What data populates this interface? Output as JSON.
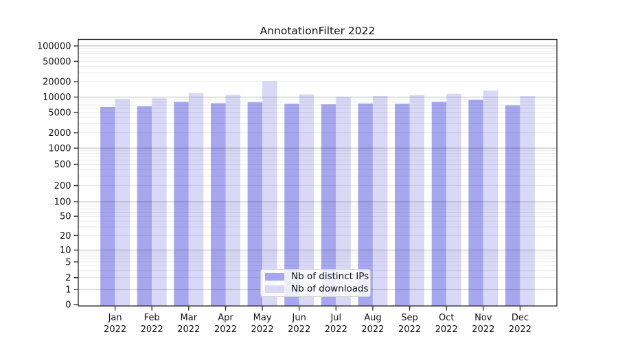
{
  "title": "AnnotationFilter 2022",
  "chart_data": {
    "type": "bar",
    "title": "AnnotationFilter 2022",
    "xlabel": "",
    "ylabel": "",
    "yscale": "symlog",
    "ylim": [
      0,
      130000
    ],
    "grid": "horizontal major (powers of 10) + log minor, drawn over bars",
    "legend_position": "inside lower-center",
    "categories": [
      "Jan",
      "Feb",
      "Mar",
      "Apr",
      "May",
      "Jun",
      "Jul",
      "Aug",
      "Sep",
      "Oct",
      "Nov",
      "Dec"
    ],
    "category_year": "2022",
    "y_ticks": [
      100000,
      50000,
      20000,
      10000,
      5000,
      2000,
      1000,
      500,
      200,
      100,
      50,
      20,
      10,
      5,
      2,
      1,
      0
    ],
    "series": [
      {
        "name": "Nb of distinct IPs",
        "color": "#a7a7ef",
        "values": [
          6400,
          6600,
          8000,
          7600,
          7900,
          7400,
          7200,
          7500,
          7400,
          8000,
          8800,
          6900
        ]
      },
      {
        "name": "Nb of downloads",
        "color": "#d9d9f7",
        "values": [
          9200,
          9500,
          12000,
          11100,
          20500,
          11300,
          10100,
          10500,
          11000,
          11600,
          13400,
          10400
        ]
      }
    ]
  },
  "colors": {
    "bar_distinct_ips": "#a7a7ef",
    "bar_downloads": "#d9d9f7",
    "major_gridline": "#b3b3b3",
    "minor_gridline": "#e8e8e8",
    "axis": "#262626",
    "background": "#ffffff"
  }
}
